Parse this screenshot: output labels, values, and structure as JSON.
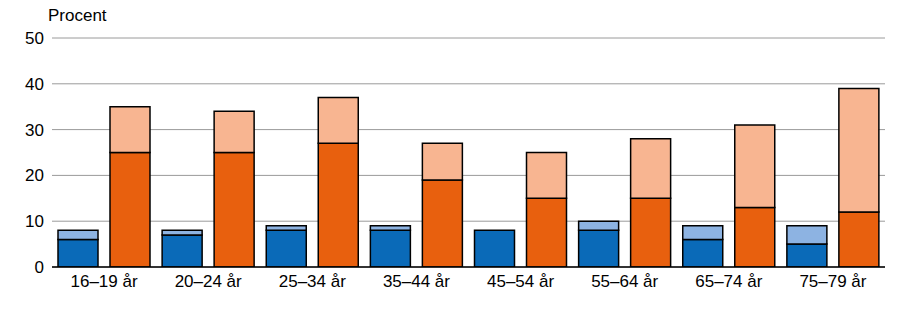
{
  "chart_data": {
    "type": "bar",
    "y_label": "Procent",
    "categories": [
      "16–19 år",
      "20–24 år",
      "25–34 år",
      "35–44 år",
      "45–54 år",
      "55–64 år",
      "65–74 år",
      "75–79 år"
    ],
    "stacked": true,
    "stacks": [
      [
        {
          "color": "#0a6ab8",
          "values": [
            6,
            7,
            8,
            8,
            8,
            8,
            6,
            5
          ]
        },
        {
          "color": "#8db3e2",
          "values": [
            2,
            1,
            1,
            1,
            0,
            2,
            3,
            4
          ]
        }
      ],
      [
        {
          "color": "#e8600e",
          "values": [
            25,
            25,
            27,
            19,
            15,
            15,
            13,
            12
          ]
        },
        {
          "color": "#f8b591",
          "values": [
            10,
            9,
            10,
            8,
            10,
            13,
            18,
            27
          ]
        }
      ]
    ],
    "ylim": [
      0,
      50
    ],
    "yticks": [
      0,
      10,
      20,
      30,
      40,
      50
    ],
    "grid": true
  }
}
